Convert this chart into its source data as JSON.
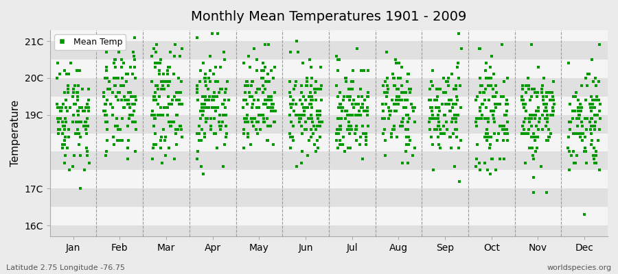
{
  "title": "Monthly Mean Temperatures 1901 - 2009",
  "ylabel": "Temperature",
  "xlabel_months": [
    "Jan",
    "Feb",
    "Mar",
    "Apr",
    "May",
    "Jun",
    "Jul",
    "Aug",
    "Sep",
    "Oct",
    "Nov",
    "Dec"
  ],
  "ylim": [
    15.7,
    21.3
  ],
  "yticks": [
    16,
    17,
    19,
    20,
    21
  ],
  "ytick_labels": [
    "16C",
    "17C",
    "19C",
    "20C",
    "21C"
  ],
  "marker_color": "#009900",
  "marker": "s",
  "marker_size": 2.5,
  "legend_label": "Mean Temp",
  "bg_color": "#ebebeb",
  "plot_bg_color": "#f5f5f5",
  "band_color": "#e0e0e0",
  "bottom_left": "Latitude 2.75 Longitude -76.75",
  "bottom_right": "worldspecies.org",
  "n_years": 109,
  "seed": 42,
  "monthly_means": [
    19.0,
    19.3,
    19.4,
    19.3,
    19.2,
    19.1,
    19.1,
    19.2,
    19.1,
    19.0,
    19.0,
    18.9
  ],
  "monthly_stds": [
    0.75,
    0.75,
    0.75,
    0.72,
    0.68,
    0.65,
    0.65,
    0.65,
    0.65,
    0.68,
    0.7,
    0.75
  ]
}
